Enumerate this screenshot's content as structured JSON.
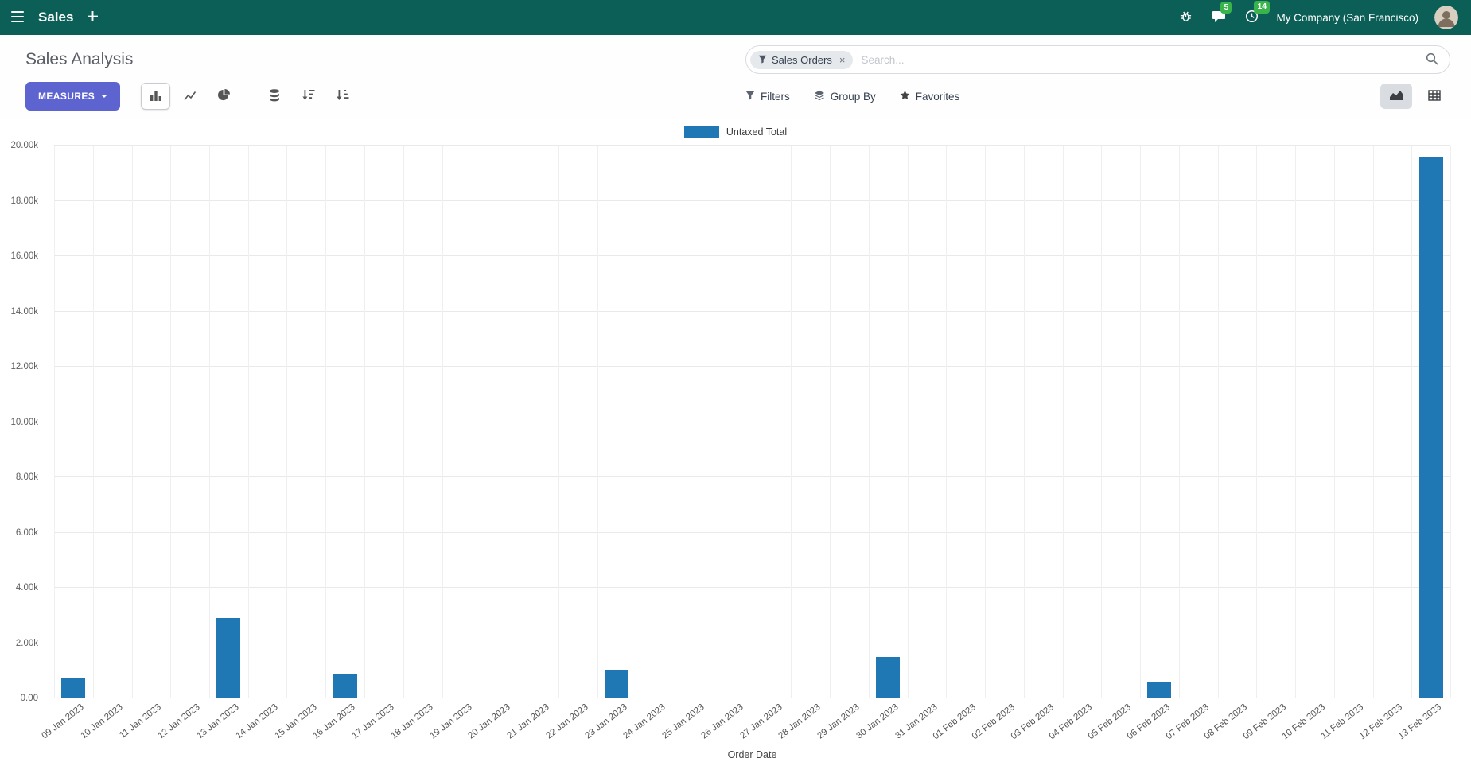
{
  "navbar": {
    "app_name": "Sales",
    "company": "My Company (San Francisco)",
    "message_badge": "5",
    "activity_badge": "14"
  },
  "control_panel": {
    "title": "Sales Analysis",
    "measures_label": "MEASURES",
    "search": {
      "facet_label": "Sales Orders",
      "facet_remove": "×",
      "placeholder": "Search..."
    },
    "filters_label": "Filters",
    "group_by_label": "Group By",
    "favorites_label": "Favorites"
  },
  "icons": {
    "apps_menu": "hamburger",
    "new_tab": "plus",
    "debug": "bug",
    "messages": "chat-bubble",
    "activities": "clock",
    "user": "avatar-photo",
    "search": "magnifier",
    "facet": "funnel",
    "filters": "funnel",
    "group_by": "layers",
    "favorites": "star",
    "measures_caret": "caret-down",
    "chart_bar": "bar-chart",
    "chart_line": "line-chart",
    "chart_pie": "pie-chart",
    "stacked": "database",
    "sort_desc": "sort-amount-desc",
    "sort_asc": "sort-amount-asc",
    "graph_view": "area-chart",
    "pivot_view": "table-grid"
  },
  "colors": {
    "navbar_bg": "#0c5f56",
    "badge_green": "#38b44a",
    "primary_button": "#5d63cf",
    "bar_color": "#1f77b4",
    "active_view_bg": "#d9dde2"
  },
  "chart_data": {
    "type": "bar",
    "title": "",
    "xlabel": "Order Date",
    "ylabel": "",
    "legend": [
      {
        "label": "Untaxed Total",
        "color": "#1f77b4"
      }
    ],
    "legend_position": "top-center",
    "grid": true,
    "ylim": [
      0,
      20000
    ],
    "ytick_step": 2000,
    "ytick_labels": [
      "0.00",
      "2.00k",
      "4.00k",
      "6.00k",
      "8.00k",
      "10.00k",
      "12.00k",
      "14.00k",
      "16.00k",
      "18.00k",
      "20.00k"
    ],
    "bar_color": "#1f77b4",
    "categories": [
      "09 Jan 2023",
      "10 Jan 2023",
      "11 Jan 2023",
      "12 Jan 2023",
      "13 Jan 2023",
      "14 Jan 2023",
      "15 Jan 2023",
      "16 Jan 2023",
      "17 Jan 2023",
      "18 Jan 2023",
      "19 Jan 2023",
      "20 Jan 2023",
      "21 Jan 2023",
      "22 Jan 2023",
      "23 Jan 2023",
      "24 Jan 2023",
      "25 Jan 2023",
      "26 Jan 2023",
      "27 Jan 2023",
      "28 Jan 2023",
      "29 Jan 2023",
      "30 Jan 2023",
      "31 Jan 2023",
      "01 Feb 2023",
      "02 Feb 2023",
      "03 Feb 2023",
      "04 Feb 2023",
      "05 Feb 2023",
      "06 Feb 2023",
      "07 Feb 2023",
      "08 Feb 2023",
      "09 Feb 2023",
      "10 Feb 2023",
      "11 Feb 2023",
      "12 Feb 2023",
      "13 Feb 2023"
    ],
    "values": [
      750,
      0,
      0,
      0,
      2900,
      0,
      0,
      900,
      0,
      0,
      0,
      0,
      0,
      0,
      1050,
      0,
      0,
      0,
      0,
      0,
      0,
      1500,
      0,
      0,
      0,
      0,
      0,
      0,
      600,
      0,
      0,
      0,
      0,
      0,
      0,
      19600
    ]
  }
}
